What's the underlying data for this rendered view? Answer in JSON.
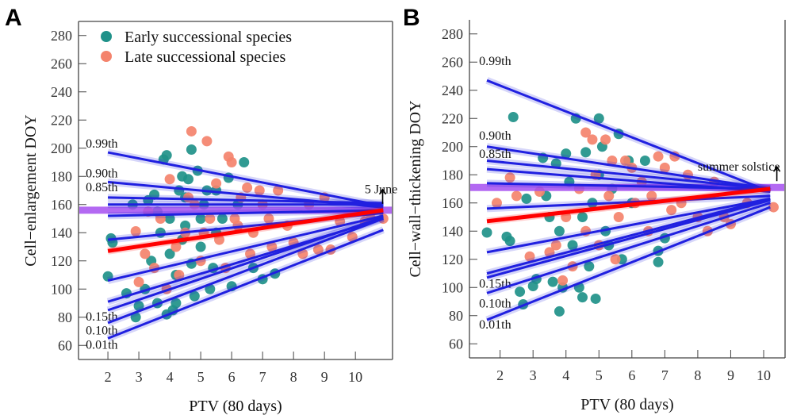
{
  "colors": {
    "early": "#1f9189",
    "late": "#f4836c",
    "quantile": "#2020e0",
    "median": "#ff0000",
    "reference": "#a64ff0"
  },
  "chart_data": [
    {
      "panel": "A",
      "type": "scatter",
      "xlabel": "PTV (80 days)",
      "ylabel": "Cell−enlargement DOY",
      "xticks": [
        2,
        3,
        4,
        5,
        6,
        7,
        8,
        9,
        10
      ],
      "yticks": [
        60,
        80,
        100,
        120,
        140,
        160,
        180,
        200,
        220,
        240,
        260,
        280
      ],
      "xlim": [
        1.05,
        11.2
      ],
      "ylim": [
        50,
        290
      ],
      "legend": {
        "placement": "top-left",
        "entries": [
          "Early successional species",
          "Late successional species"
        ]
      },
      "reference_line": {
        "y": 156,
        "label": "5 June"
      },
      "quantile_lines": [
        {
          "label": "0.99th",
          "x": [
            2,
            10.9
          ],
          "y": [
            197,
            159
          ]
        },
        {
          "label": "0.90th",
          "x": [
            2,
            10.9
          ],
          "y": [
            176,
            158
          ]
        },
        {
          "label": "0.85th",
          "x": [
            2,
            10.9
          ],
          "y": [
            165,
            161
          ]
        },
        {
          "label": "",
          "x": [
            2,
            10.9
          ],
          "y": [
            160,
            160
          ]
        },
        {
          "label": "",
          "x": [
            2,
            10.9
          ],
          "y": [
            152,
            156
          ]
        },
        {
          "label": "",
          "x": [
            2,
            10.9
          ],
          "y": [
            135,
            154
          ]
        },
        {
          "label": "",
          "x": [
            2,
            10.9
          ],
          "y": [
            127,
            156
          ],
          "median": true
        },
        {
          "label": "",
          "x": [
            2,
            10.9
          ],
          "y": [
            106,
            152
          ]
        },
        {
          "label": "",
          "x": [
            2,
            10.9
          ],
          "y": [
            91,
            150
          ]
        },
        {
          "label": "0.15th",
          "x": [
            2,
            10.9
          ],
          "y": [
            85,
            151
          ]
        },
        {
          "label": "0.10th",
          "x": [
            2,
            10.9
          ],
          "y": [
            76,
            150
          ]
        },
        {
          "label": "0.01th",
          "x": [
            2,
            10.9
          ],
          "y": [
            65,
            142
          ]
        }
      ],
      "series": [
        {
          "name": "Early successional species",
          "points": [
            [
              2,
              109
            ],
            [
              2.1,
              136
            ],
            [
              2.15,
              133
            ],
            [
              2.6,
              97
            ],
            [
              2.8,
              160
            ],
            [
              2.9,
              80
            ],
            [
              3,
              88
            ],
            [
              3.3,
              163
            ],
            [
              3.5,
              167
            ],
            [
              3.6,
              90
            ],
            [
              3.8,
              192
            ],
            [
              3.9,
              195
            ],
            [
              3.9,
              82
            ],
            [
              4,
              150
            ],
            [
              4.1,
              85
            ],
            [
              4.2,
              110
            ],
            [
              4.3,
              170
            ],
            [
              4.4,
              180
            ],
            [
              4.5,
              165
            ],
            [
              4.6,
              178
            ],
            [
              4.7,
              199
            ],
            [
              4.8,
              95
            ],
            [
              4.9,
              184
            ],
            [
              5,
              130
            ],
            [
              5.1,
              160
            ],
            [
              5.2,
              170
            ],
            [
              5.3,
              100
            ],
            [
              5.4,
              115
            ],
            [
              5.5,
              140
            ],
            [
              5.7,
              150
            ],
            [
              5.9,
              179
            ],
            [
              6,
              102
            ],
            [
              6.2,
              160
            ],
            [
              6.4,
              190
            ],
            [
              6.7,
              115
            ],
            [
              7,
              107
            ],
            [
              7.4,
              111
            ],
            [
              3.4,
              120
            ],
            [
              3.7,
              140
            ],
            [
              4,
              125
            ],
            [
              4.5,
              145
            ],
            [
              5,
              150
            ],
            [
              3.2,
              100
            ],
            [
              4.2,
              90
            ],
            [
              3.6,
              155
            ],
            [
              4.4,
              135
            ],
            [
              5.5,
              170
            ],
            [
              4.7,
              118
            ]
          ]
        },
        {
          "name": "Late successional species",
          "points": [
            [
              2.9,
              141
            ],
            [
              3,
              105
            ],
            [
              3.2,
              125
            ],
            [
              3.3,
              155
            ],
            [
              3.5,
              115
            ],
            [
              3.7,
              150
            ],
            [
              4,
              178
            ],
            [
              4.2,
              130
            ],
            [
              4.5,
              140
            ],
            [
              4.7,
              212
            ],
            [
              4.8,
              160
            ],
            [
              5,
              120
            ],
            [
              5.2,
              205
            ],
            [
              5.3,
              150
            ],
            [
              5.5,
              175
            ],
            [
              5.6,
              135
            ],
            [
              5.9,
              194
            ],
            [
              6,
              190
            ],
            [
              6.1,
              150
            ],
            [
              6.3,
              165
            ],
            [
              6.5,
              172
            ],
            [
              6.7,
              140
            ],
            [
              7,
              160
            ],
            [
              7.2,
              150
            ],
            [
              7.5,
              170
            ],
            [
              7.8,
              145
            ],
            [
              8,
              133
            ],
            [
              8.3,
              125
            ],
            [
              8.5,
              160
            ],
            [
              8.8,
              128
            ],
            [
              9,
              165
            ],
            [
              9.2,
              128
            ],
            [
              9.5,
              148
            ],
            [
              9.9,
              137
            ],
            [
              10.3,
              148
            ],
            [
              10.5,
              150
            ],
            [
              10.9,
              150
            ],
            [
              4.3,
              110
            ],
            [
              5.8,
              115
            ],
            [
              6.6,
              125
            ],
            [
              7.3,
              130
            ],
            [
              3.9,
              100
            ],
            [
              4.6,
              165
            ],
            [
              5.1,
              140
            ],
            [
              6.2,
              145
            ],
            [
              6.9,
              170
            ]
          ]
        }
      ]
    },
    {
      "panel": "B",
      "type": "scatter",
      "xlabel": "PTV (80 days)",
      "ylabel": "Cell−wall−thickening DOY",
      "xticks": [
        2,
        3,
        4,
        5,
        6,
        7,
        8,
        9,
        10
      ],
      "yticks": [
        60,
        80,
        100,
        120,
        140,
        160,
        180,
        200,
        220,
        240,
        260,
        280
      ],
      "xlim": [
        1.07,
        10.65
      ],
      "ylim": [
        50,
        290
      ],
      "reference_line": {
        "y": 171,
        "label": "summer solstice"
      },
      "quantile_lines": [
        {
          "label": "0.99th",
          "x": [
            1.6,
            10.2
          ],
          "y": [
            247,
            168
          ]
        },
        {
          "label": "0.90th",
          "x": [
            1.6,
            10.2
          ],
          "y": [
            200,
            170
          ]
        },
        {
          "label": "0.85th",
          "x": [
            1.6,
            10.2
          ],
          "y": [
            190,
            170
          ]
        },
        {
          "label": "",
          "x": [
            1.6,
            10.2
          ],
          "y": [
            184,
            168
          ]
        },
        {
          "label": "",
          "x": [
            1.6,
            10.2
          ],
          "y": [
            174,
            170
          ]
        },
        {
          "label": "",
          "x": [
            1.6,
            10.2
          ],
          "y": [
            156,
            165
          ]
        },
        {
          "label": "",
          "x": [
            1.6,
            10.2
          ],
          "y": [
            147,
            170
          ],
          "median": true
        },
        {
          "label": "",
          "x": [
            1.6,
            10.2
          ],
          "y": [
            125,
            163
          ]
        },
        {
          "label": "",
          "x": [
            1.6,
            10.2
          ],
          "y": [
            110,
            163
          ]
        },
        {
          "label": "0.15th",
          "x": [
            1.6,
            10.2
          ],
          "y": [
            107,
            162
          ]
        },
        {
          "label": "0.10th",
          "x": [
            1.6,
            10.2
          ],
          "y": [
            96,
            160
          ]
        },
        {
          "label": "0.01th",
          "x": [
            1.6,
            10.2
          ],
          "y": [
            77,
            157
          ]
        }
      ],
      "series": [
        {
          "name": "Early successional species",
          "points": [
            [
              1.6,
              139
            ],
            [
              2.2,
              136
            ],
            [
              2.3,
              133
            ],
            [
              2.4,
              221
            ],
            [
              2.6,
              97
            ],
            [
              2.7,
              88
            ],
            [
              2.8,
              163
            ],
            [
              3,
              101
            ],
            [
              3.1,
              106
            ],
            [
              3.3,
              192
            ],
            [
              3.5,
              150
            ],
            [
              3.6,
              104
            ],
            [
              3.7,
              188
            ],
            [
              3.8,
              83
            ],
            [
              3.9,
              100
            ],
            [
              4,
              195
            ],
            [
              4.2,
              130
            ],
            [
              4.3,
              220
            ],
            [
              4.4,
              100
            ],
            [
              4.5,
              93
            ],
            [
              4.6,
              196
            ],
            [
              4.7,
              115
            ],
            [
              4.9,
              92
            ],
            [
              5,
              220
            ],
            [
              5.1,
              200
            ],
            [
              5.2,
              140
            ],
            [
              5.4,
              170
            ],
            [
              5.6,
              209
            ],
            [
              5.7,
              120
            ],
            [
              5.9,
              190
            ],
            [
              6,
              160
            ],
            [
              6.4,
              190
            ],
            [
              6.8,
              126
            ],
            [
              6.8,
              118
            ],
            [
              7,
              135
            ],
            [
              3.4,
              165
            ],
            [
              4.1,
              175
            ],
            [
              4.8,
              160
            ],
            [
              5.3,
              130
            ],
            [
              3.8,
              140
            ],
            [
              4.5,
              150
            ],
            [
              5,
              180
            ]
          ]
        },
        {
          "name": "Late successional species",
          "points": [
            [
              1.9,
              160
            ],
            [
              2.3,
              178
            ],
            [
              2.5,
              165
            ],
            [
              2.9,
              122
            ],
            [
              3.2,
              168
            ],
            [
              3.5,
              125
            ],
            [
              3.9,
              105
            ],
            [
              4,
              150
            ],
            [
              4.4,
              170
            ],
            [
              4.6,
              210
            ],
            [
              4.8,
              205
            ],
            [
              5,
              130
            ],
            [
              5.2,
              205
            ],
            [
              5.4,
              190
            ],
            [
              5.5,
              120
            ],
            [
              5.8,
              190
            ],
            [
              6,
              185
            ],
            [
              6.3,
              175
            ],
            [
              6.6,
              165
            ],
            [
              6.8,
              193
            ],
            [
              7,
              185
            ],
            [
              7.3,
              193
            ],
            [
              7.5,
              160
            ],
            [
              7.7,
              180
            ],
            [
              8,
              150
            ],
            [
              8.3,
              140
            ],
            [
              8.5,
              175
            ],
            [
              8.8,
              150
            ],
            [
              9,
              145
            ],
            [
              9.5,
              160
            ],
            [
              10.3,
              157
            ],
            [
              4.2,
              115
            ],
            [
              5.6,
              150
            ],
            [
              6.5,
              140
            ],
            [
              7.2,
              155
            ],
            [
              3.7,
              130
            ],
            [
              4.9,
              180
            ],
            [
              6.1,
              160
            ],
            [
              4.6,
              140
            ],
            [
              5.3,
              165
            ]
          ]
        }
      ]
    }
  ]
}
